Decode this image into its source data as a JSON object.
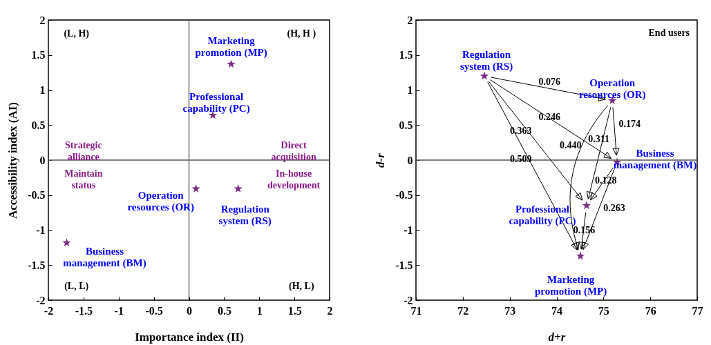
{
  "chart_data": [
    {
      "type": "scatter",
      "xlabel": "Importance index (II)",
      "ylabel": "Accessibility index (AI)",
      "xlim": [
        -2,
        2
      ],
      "ylim": [
        -2,
        2
      ],
      "xticks": [
        -2,
        -1.5,
        -1,
        -0.5,
        0,
        0.5,
        1,
        1.5,
        2
      ],
      "yticks": [
        -2,
        -1.5,
        -1,
        -0.5,
        0,
        0.5,
        1,
        1.5,
        2
      ],
      "grid": false,
      "legend": false,
      "marker": "star",
      "series": [
        {
          "name": "Marketing promotion (MP)",
          "color": "#7b2d86",
          "x": [
            0.6
          ],
          "values": [
            1.37
          ]
        },
        {
          "name": "Professional capability (PC)",
          "color": "#7b2d86",
          "x": [
            0.34
          ],
          "values": [
            0.64
          ]
        },
        {
          "name": "Operation resources (OR)",
          "color": "#7b2d86",
          "x": [
            0.1
          ],
          "values": [
            -0.41
          ]
        },
        {
          "name": "Regulation system (RS)",
          "color": "#7b2d86",
          "x": [
            0.7
          ],
          "values": [
            -0.41
          ]
        },
        {
          "name": "Business management (BM)",
          "color": "#7b2d86",
          "x": [
            -1.74
          ],
          "values": [
            -1.18
          ]
        }
      ],
      "ref_lines": [
        {
          "axis": "x",
          "value": 0
        },
        {
          "axis": "y",
          "value": 0
        }
      ],
      "annotations": [
        "(L, H)",
        "(H, H )",
        "(L, L)",
        "(H, L)",
        "Strategic alliance",
        "Direct acquisition",
        "Maintain status",
        "In-house development"
      ]
    },
    {
      "type": "scatter",
      "xlabel": "d+r",
      "ylabel": "d-r",
      "xlim": [
        71,
        77
      ],
      "ylim": [
        -2,
        2
      ],
      "xticks": [
        71,
        72,
        73,
        74,
        75,
        76,
        77
      ],
      "yticks": [
        -2,
        -1.5,
        -1,
        -0.5,
        0,
        0.5,
        1,
        1.5,
        2
      ],
      "grid": false,
      "legend": false,
      "marker": "star",
      "series": [
        {
          "name": "Regulation system (RS)",
          "color": "#7b2d86",
          "x": [
            72.46
          ],
          "values": [
            1.2
          ]
        },
        {
          "name": "Operation resources (OR)",
          "color": "#7b2d86",
          "x": [
            75.19
          ],
          "values": [
            0.85
          ]
        },
        {
          "name": "Business management (BM)",
          "color": "#7b2d86",
          "x": [
            75.29
          ],
          "values": [
            -0.03
          ]
        },
        {
          "name": "Professional capability (PC)",
          "color": "#7b2d86",
          "x": [
            74.64
          ],
          "values": [
            -0.65
          ]
        },
        {
          "name": "Marketing promotion (MP)",
          "color": "#7b2d86",
          "x": [
            74.51
          ],
          "values": [
            -1.37
          ]
        }
      ],
      "ref_lines": [
        {
          "axis": "y",
          "value": 0
        }
      ],
      "annotations": [
        "End users",
        "0.076",
        "0.246",
        "0.363",
        "0.509",
        "0.174",
        "0.311",
        "0.440",
        "0.128",
        "0.263",
        "0.156"
      ]
    }
  ]
}
